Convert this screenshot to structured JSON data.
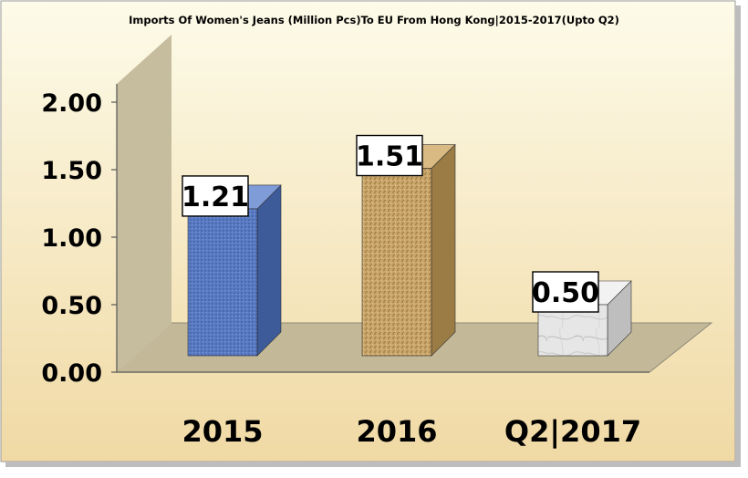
{
  "chart_data": {
    "type": "bar",
    "title": "Imports Of Women's Jeans (Million Pcs)To EU From Hong Kong|2015-2017(Upto Q2)",
    "categories": [
      "2015",
      "2016",
      "Q2|2017"
    ],
    "values": [
      1.21,
      1.51,
      0.5
    ],
    "data_labels": [
      "1.21",
      "1.51",
      "0.50"
    ],
    "ylim": [
      0,
      2.0
    ],
    "yticks": [
      "0.00",
      "0.50",
      "1.00",
      "1.50",
      "2.00"
    ],
    "grid": false,
    "legend": "none",
    "bar_style": "3d",
    "colors": {
      "bar_2015": "#5A7BC4",
      "bar_2016": "#C9A66B",
      "bar_2017": "#E4E4E4",
      "background_top": "#FDFBE9",
      "background_bottom": "#F0D9A4",
      "wall": "#C6BC9E",
      "floor": "#C3B998"
    }
  }
}
